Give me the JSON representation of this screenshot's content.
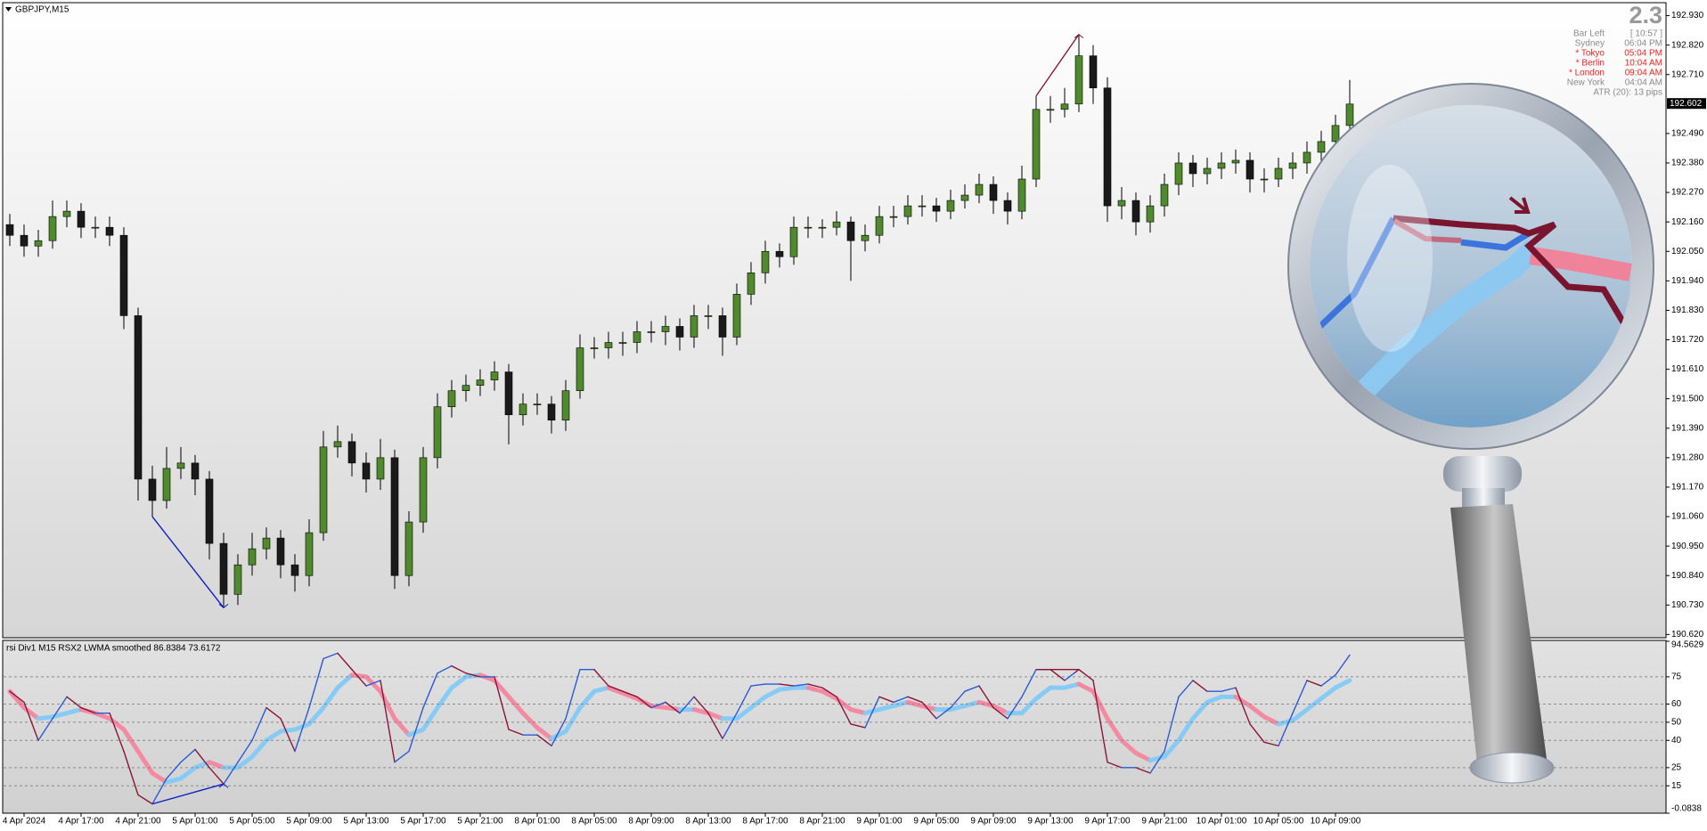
{
  "chart_data": [
    {
      "type": "candlestick",
      "title": "GBPJPY,M15",
      "categories": [
        null,
        "4 Apr 2024",
        null,
        null,
        null,
        "4 Apr 17:00",
        null,
        null,
        null,
        "4 Apr 21:00",
        null,
        null,
        null,
        "5 Apr 01:00",
        null,
        null,
        null,
        "5 Apr 05:00",
        null,
        null,
        null,
        "5 Apr 09:00",
        null,
        null,
        null,
        "5 Apr 13:00",
        null,
        null,
        null,
        "5 Apr 17:00",
        null,
        null,
        null,
        "5 Apr 21:00",
        null,
        null,
        null,
        "8 Apr 01:00",
        null,
        null,
        null,
        "8 Apr 05:00",
        null,
        null,
        null,
        "8 Apr 09:00",
        null,
        null,
        null,
        "8 Apr 13:00",
        null,
        null,
        null,
        "8 Apr 17:00",
        null,
        null,
        null,
        "8 Apr 21:00",
        null,
        null,
        null,
        "9 Apr 01:00",
        null,
        null,
        null,
        "9 Apr 05:00",
        null,
        null,
        null,
        "9 Apr 09:00",
        null,
        null,
        null,
        "9 Apr 13:00",
        null,
        null,
        null,
        "9 Apr 17:00",
        null,
        null,
        null,
        "9 Apr 21:00",
        null,
        null,
        null,
        "10 Apr 01:00",
        null,
        null,
        null,
        "10 Apr 05:00",
        null,
        null,
        null,
        "10 Apr 09:00",
        null
      ],
      "open": [
        192.15,
        192.11,
        192.07,
        192.09,
        192.18,
        192.2,
        192.14,
        192.14,
        192.11,
        191.81,
        191.2,
        191.12,
        191.24,
        191.26,
        191.2,
        190.96,
        190.77,
        190.88,
        190.94,
        190.98,
        190.88,
        190.84,
        191.0,
        191.32,
        191.34,
        191.26,
        191.2,
        191.28,
        190.84,
        191.04,
        191.28,
        191.47,
        191.53,
        191.55,
        191.57,
        191.6,
        191.44,
        191.48,
        191.48,
        191.42,
        191.53,
        191.69,
        191.69,
        191.71,
        191.71,
        191.75,
        191.75,
        191.77,
        191.73,
        191.81,
        191.81,
        191.73,
        191.89,
        191.97,
        192.05,
        192.03,
        192.14,
        192.14,
        192.14,
        192.16,
        192.09,
        192.11,
        192.18,
        192.18,
        192.22,
        192.22,
        192.2,
        192.24,
        192.26,
        192.3,
        192.24,
        192.2,
        192.32,
        192.58,
        192.58,
        192.6,
        192.78,
        192.66,
        192.22,
        192.24,
        192.16,
        192.22,
        192.3,
        192.38,
        192.34,
        192.36,
        192.38,
        192.39,
        192.32,
        192.32,
        192.36,
        192.38,
        192.42,
        192.46,
        192.52
      ],
      "high": [
        192.19,
        192.15,
        192.13,
        192.24,
        192.24,
        192.23,
        192.18,
        192.18,
        192.14,
        191.84,
        191.25,
        191.32,
        191.32,
        191.29,
        191.23,
        191.0,
        190.92,
        191.0,
        191.02,
        191.01,
        190.92,
        191.05,
        191.38,
        191.4,
        191.37,
        191.3,
        191.35,
        191.31,
        191.08,
        191.32,
        191.52,
        191.57,
        191.59,
        191.61,
        191.64,
        191.63,
        191.52,
        191.52,
        191.51,
        191.57,
        191.74,
        191.73,
        191.75,
        191.75,
        191.79,
        191.79,
        191.81,
        191.8,
        191.85,
        191.85,
        191.84,
        191.93,
        192.01,
        192.09,
        192.08,
        192.18,
        192.18,
        192.17,
        192.2,
        192.18,
        192.15,
        192.22,
        192.22,
        192.26,
        192.26,
        192.25,
        192.28,
        192.3,
        192.34,
        192.33,
        192.27,
        192.37,
        192.63,
        192.63,
        192.66,
        192.86,
        192.82,
        192.7,
        192.29,
        192.27,
        192.26,
        192.34,
        192.42,
        192.41,
        192.4,
        192.42,
        192.43,
        192.42,
        192.36,
        192.4,
        192.42,
        192.46,
        192.5,
        192.56,
        192.69
      ],
      "low": [
        192.07,
        192.03,
        192.03,
        192.06,
        192.14,
        192.1,
        192.1,
        192.07,
        191.76,
        191.12,
        191.06,
        191.09,
        191.2,
        191.14,
        190.9,
        190.72,
        190.73,
        190.84,
        190.9,
        190.83,
        190.78,
        190.8,
        190.97,
        191.28,
        191.21,
        191.15,
        191.16,
        190.79,
        190.8,
        191.0,
        191.24,
        191.43,
        191.49,
        191.51,
        191.53,
        191.33,
        191.4,
        191.44,
        191.37,
        191.38,
        191.5,
        191.65,
        191.65,
        191.66,
        191.67,
        191.71,
        191.7,
        191.68,
        191.69,
        191.76,
        191.66,
        191.7,
        191.85,
        191.93,
        191.99,
        192.0,
        192.1,
        192.1,
        192.11,
        191.94,
        192.05,
        192.08,
        192.14,
        192.15,
        192.18,
        192.16,
        192.17,
        192.21,
        192.23,
        192.19,
        192.15,
        192.17,
        192.29,
        192.53,
        192.55,
        192.57,
        192.6,
        192.16,
        192.17,
        192.11,
        192.12,
        192.18,
        192.26,
        192.29,
        192.3,
        192.32,
        192.34,
        192.27,
        192.27,
        192.29,
        192.32,
        192.34,
        192.38,
        192.42,
        192.48
      ],
      "close": [
        192.11,
        192.07,
        192.09,
        192.18,
        192.2,
        192.14,
        192.14,
        192.11,
        191.81,
        191.2,
        191.12,
        191.24,
        191.26,
        191.2,
        190.96,
        190.77,
        190.88,
        190.94,
        190.98,
        190.88,
        190.84,
        191.0,
        191.32,
        191.34,
        191.26,
        191.2,
        191.28,
        190.84,
        191.04,
        191.28,
        191.47,
        191.53,
        191.55,
        191.57,
        191.6,
        191.44,
        191.48,
        191.48,
        191.42,
        191.53,
        191.69,
        191.69,
        191.71,
        191.71,
        191.75,
        191.75,
        191.77,
        191.73,
        191.81,
        191.81,
        191.73,
        191.89,
        191.97,
        192.05,
        192.03,
        192.14,
        192.14,
        192.14,
        192.16,
        192.09,
        192.11,
        192.18,
        192.18,
        192.22,
        192.22,
        192.2,
        192.24,
        192.26,
        192.3,
        192.24,
        192.2,
        192.32,
        192.58,
        192.58,
        192.6,
        192.78,
        192.66,
        192.22,
        192.24,
        192.16,
        192.22,
        192.3,
        192.38,
        192.34,
        192.36,
        192.38,
        192.39,
        192.32,
        192.32,
        192.36,
        192.38,
        192.42,
        192.46,
        192.52,
        192.6
      ],
      "up_color": "#4f8a2c",
      "down_color": "#1a1a1a",
      "current_price": 192.602,
      "ylim": [
        190.608,
        192.975
      ],
      "yticks": [
        {
          "value": 192.93,
          "label": "192.930"
        },
        {
          "value": 192.82,
          "label": "192.820"
        },
        {
          "value": 192.71,
          "label": "192.710"
        },
        {
          "value": 192.49,
          "label": "192.490"
        },
        {
          "value": 192.38,
          "label": "192.380"
        },
        {
          "value": 192.27,
          "label": "192.270"
        },
        {
          "value": 192.16,
          "label": "192.160"
        },
        {
          "value": 192.05,
          "label": "192.050"
        },
        {
          "value": 191.94,
          "label": "191.940"
        },
        {
          "value": 191.83,
          "label": "191.830"
        },
        {
          "value": 191.72,
          "label": "191.720"
        },
        {
          "value": 191.61,
          "label": "191.610"
        },
        {
          "value": 191.5,
          "label": "191.500"
        },
        {
          "value": 191.39,
          "label": "191.390"
        },
        {
          "value": 191.28,
          "label": "191.280"
        },
        {
          "value": 191.17,
          "label": "191.170"
        },
        {
          "value": 191.06,
          "label": "191.060"
        },
        {
          "value": 190.95,
          "label": "190.950"
        },
        {
          "value": 190.84,
          "label": "190.840"
        },
        {
          "value": 190.73,
          "label": "190.730"
        },
        {
          "value": 190.62,
          "label": "190.620"
        }
      ]
    },
    {
      "type": "line",
      "title": "rsi Div1 M15 RSX2 LWMA smoothed  86.8384 73.6172",
      "series": [
        {
          "colors": [
            "#2a5ad8",
            "#8a1538"
          ],
          "values": [
            67,
            61,
            40,
            52,
            64,
            58,
            55,
            55,
            34,
            10,
            5,
            19,
            28,
            35,
            25,
            16,
            28,
            40,
            58,
            52,
            34,
            58,
            85,
            88,
            79,
            70,
            73,
            28,
            34,
            58,
            77,
            81,
            77,
            75,
            75,
            46,
            43,
            43,
            37,
            52,
            79,
            79,
            70,
            67,
            64,
            58,
            61,
            55,
            64,
            55,
            41,
            55,
            70,
            71,
            71,
            70,
            71,
            69,
            64,
            49,
            47,
            64,
            61,
            64,
            61,
            52,
            58,
            67,
            70,
            58,
            52,
            64,
            79,
            79,
            73,
            79,
            73,
            28,
            25,
            25,
            22,
            34,
            64,
            73,
            67,
            67,
            69,
            49,
            39,
            37,
            55,
            73,
            70,
            76,
            87
          ]
        },
        {
          "colors": [
            "#86cbf5",
            "#f38aa2"
          ],
          "values": [
            67,
            58,
            52,
            53,
            55,
            57,
            55,
            52,
            46,
            34,
            22,
            17,
            19,
            25,
            28,
            25,
            25,
            31,
            40,
            45,
            46,
            49,
            58,
            69,
            76,
            75,
            67,
            52,
            43,
            46,
            58,
            69,
            75,
            76,
            73,
            64,
            55,
            47,
            41,
            45,
            58,
            67,
            69,
            66,
            63,
            59,
            58,
            57,
            57,
            55,
            52,
            52,
            58,
            64,
            68,
            69,
            69,
            67,
            63,
            57,
            55,
            57,
            59,
            61,
            59,
            57,
            57,
            59,
            61,
            59,
            55,
            55,
            63,
            69,
            69,
            71,
            67,
            52,
            40,
            33,
            29,
            31,
            40,
            52,
            61,
            64,
            64,
            59,
            53,
            49,
            51,
            57,
            63,
            69,
            73
          ]
        }
      ],
      "ylim": [
        -0.0838,
        94.5629
      ],
      "yticks": [
        94.5629,
        75,
        60,
        50,
        40,
        25,
        15,
        -0.0838
      ],
      "grid": true
    }
  ],
  "info_panel": {
    "spread": "2.3",
    "rows": [
      {
        "label": "Bar Left",
        "value": "[ 10:57 ]",
        "open": false
      },
      {
        "label": "Sydney",
        "value": "06:04 PM",
        "open": false
      },
      {
        "label": "* Tokyo",
        "value": "05:04 PM",
        "open": true
      },
      {
        "label": "* Berlin",
        "value": "10:04 AM",
        "open": true
      },
      {
        "label": "* London",
        "value": "09:04 AM",
        "open": true
      },
      {
        "label": "New York",
        "value": "04:04 AM",
        "open": false
      }
    ],
    "atr": "ATR (20): 13 pips"
  }
}
